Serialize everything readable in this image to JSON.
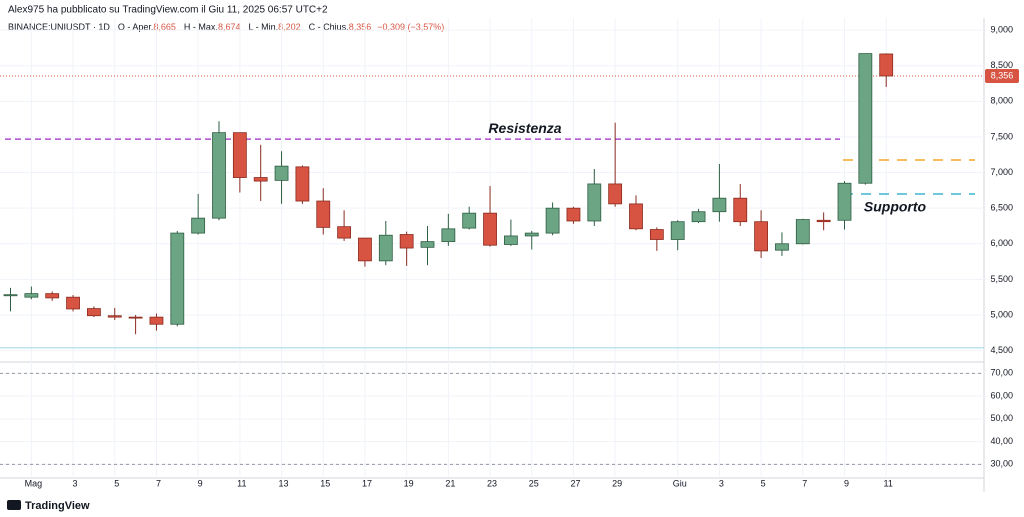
{
  "chart_data": {
    "type": "candlestick",
    "header": "Alex975 ha pubblicato su TradingView.com il Giu 11, 2025 06:57 UTC+2",
    "symbol": "BINANCE:UNIUSDT · 1D",
    "legend": [
      {
        "label": "O - Aper.",
        "value": "8,665"
      },
      {
        "label": "H - Max.",
        "value": "8,674"
      },
      {
        "label": "L - Min.",
        "value": "8,202"
      },
      {
        "label": "C - Chius.",
        "value": "8,356"
      }
    ],
    "change": "−0,309 (−3,57%)",
    "categories": [
      null,
      "Mag",
      null,
      "3",
      null,
      "5",
      null,
      "7",
      null,
      "9",
      null,
      "11",
      null,
      "13",
      null,
      "15",
      null,
      "17",
      null,
      "19",
      null,
      "21",
      null,
      "23",
      null,
      "25",
      null,
      "27",
      null,
      "29",
      null,
      null,
      "Giu",
      null,
      "3",
      null,
      "5",
      null,
      "7",
      null,
      "9",
      null,
      "11"
    ],
    "open": [
      5270,
      5250,
      5300,
      5250,
      5090,
      4990,
      4970,
      4970,
      4870,
      6150,
      6360,
      7560,
      6930,
      6890,
      7080,
      6600,
      6240,
      6080,
      5760,
      6130,
      5950,
      6030,
      6220,
      6430,
      5990,
      6110,
      6150,
      6500,
      6320,
      6840,
      6560,
      6200,
      6060,
      6310,
      6450,
      6640,
      6310,
      5910,
      6000,
      6330,
      6330,
      6850,
      8665
    ],
    "high": [
      5380,
      5400,
      5330,
      5280,
      5120,
      5100,
      5000,
      5020,
      6180,
      6700,
      7720,
      7560,
      7390,
      7300,
      7100,
      6780,
      6470,
      6080,
      6320,
      6170,
      6250,
      6420,
      6520,
      6810,
      6340,
      6180,
      6580,
      6520,
      7050,
      7700,
      6680,
      6230,
      6330,
      6490,
      7120,
      6840,
      6470,
      6160,
      6350,
      6440,
      6880,
      8670,
      8674
    ],
    "low": [
      5050,
      5220,
      5200,
      5050,
      4970,
      4930,
      4730,
      4780,
      4840,
      6130,
      6330,
      6720,
      6600,
      6560,
      6560,
      6130,
      6040,
      5680,
      5700,
      5690,
      5700,
      5970,
      6200,
      5960,
      5970,
      5920,
      6120,
      6280,
      6250,
      6520,
      6190,
      5900,
      5910,
      6290,
      6310,
      6250,
      5800,
      5830,
      5990,
      6190,
      6200,
      6830,
      8202
    ],
    "close": [
      5285,
      5300,
      5240,
      5085,
      4990,
      4970,
      4960,
      4870,
      6150,
      6360,
      7560,
      6930,
      6880,
      7090,
      6600,
      6230,
      6080,
      5760,
      6120,
      5940,
      6030,
      6210,
      6430,
      5980,
      6110,
      6150,
      6500,
      6320,
      6840,
      6560,
      6210,
      6060,
      6310,
      6450,
      6640,
      6310,
      5900,
      6000,
      6340,
      6310,
      6850,
      8670,
      8356
    ],
    "up_color": "#6ba583",
    "down_color": "#d75442",
    "ylim": [
      4340,
      9170
    ],
    "yticks": [
      {
        "value": 4500,
        "label": "4,500"
      },
      {
        "value": 5000,
        "label": "5,000"
      },
      {
        "value": 5500,
        "label": "5,500"
      },
      {
        "value": 6000,
        "label": "6,000"
      },
      {
        "value": 6500,
        "label": "6,500"
      },
      {
        "value": 7000,
        "label": "7,000"
      },
      {
        "value": 7500,
        "label": "7,500"
      },
      {
        "value": 8000,
        "label": "8,000"
      },
      {
        "value": 8500,
        "label": "8,500"
      },
      {
        "value": 9000,
        "label": "9,000"
      }
    ],
    "last_price": {
      "value": 8356,
      "label": "8,356"
    },
    "hlines": [
      {
        "value": 7470,
        "color": "#b04cc8",
        "label": "Resistenza"
      },
      {
        "value": 7176,
        "color": "#f5a623"
      },
      {
        "value": 6699,
        "color": "#3fb6cf",
        "label": "Supporto"
      },
      {
        "value": 4539,
        "color": "#a8d8ea"
      }
    ],
    "lower_pane": {
      "ylim": [
        24,
        75
      ],
      "yticks": [
        {
          "value": 30,
          "label": "30,00"
        },
        {
          "value": 40,
          "label": "40,00"
        },
        {
          "value": 50,
          "label": "50,00"
        },
        {
          "value": 60,
          "label": "60,00"
        },
        {
          "value": 70,
          "label": "70,00"
        }
      ],
      "hlines": [
        70,
        30
      ]
    },
    "footer": "TradingView"
  }
}
